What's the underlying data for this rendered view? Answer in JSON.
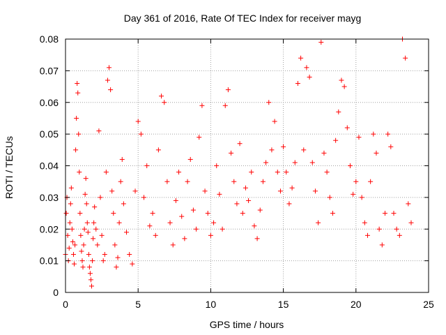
{
  "chart_data": {
    "type": "scatter",
    "title": "Day 361 of 2016, Rate Of TEC Index for receiver mayg",
    "xlabel": "GPS time / hours",
    "ylabel": "ROTI / TECUs",
    "xlim": [
      0,
      25
    ],
    "ylim": [
      0,
      0.08
    ],
    "xticks": [
      0,
      5,
      10,
      15,
      20,
      25
    ],
    "yticks": [
      0,
      0.01,
      0.02,
      0.03,
      0.04,
      0.05,
      0.06,
      0.07,
      0.08
    ],
    "xtick_labels": [
      "0",
      "5",
      "10",
      "15",
      "20",
      "25"
    ],
    "ytick_labels": [
      "0",
      "0.01",
      "0.02",
      "0.03",
      "0.04",
      "0.05",
      "0.06",
      "0.07",
      "0.08"
    ],
    "grid": true,
    "marker": "+",
    "color": "#ff0000",
    "series": [
      {
        "name": "ROTI",
        "x": [
          0.0,
          0.05,
          0.1,
          0.15,
          0.2,
          0.25,
          0.3,
          0.35,
          0.4,
          0.45,
          0.5,
          0.55,
          0.6,
          0.65,
          0.7,
          0.75,
          0.8,
          0.85,
          0.9,
          0.95,
          1.0,
          1.05,
          1.1,
          1.15,
          1.2,
          1.25,
          1.3,
          1.35,
          1.4,
          1.45,
          1.5,
          1.55,
          1.6,
          1.65,
          1.7,
          1.75,
          1.8,
          1.85,
          1.9,
          1.95,
          2.0,
          2.1,
          2.2,
          2.3,
          2.4,
          2.5,
          2.6,
          2.7,
          2.8,
          2.9,
          3.0,
          3.1,
          3.2,
          3.3,
          3.4,
          3.5,
          3.6,
          3.7,
          3.8,
          3.9,
          4.0,
          4.2,
          4.4,
          4.6,
          4.8,
          5.0,
          5.2,
          5.4,
          5.6,
          5.8,
          6.0,
          6.2,
          6.4,
          6.6,
          6.8,
          7.0,
          7.2,
          7.4,
          7.6,
          7.8,
          8.0,
          8.2,
          8.4,
          8.6,
          8.8,
          9.0,
          9.2,
          9.4,
          9.6,
          9.8,
          10.0,
          10.2,
          10.4,
          10.6,
          10.8,
          11.0,
          11.2,
          11.4,
          11.6,
          11.8,
          12.0,
          12.2,
          12.4,
          12.6,
          12.8,
          13.0,
          13.2,
          13.4,
          13.6,
          13.8,
          14.0,
          14.2,
          14.4,
          14.6,
          14.8,
          15.0,
          15.2,
          15.4,
          15.6,
          15.8,
          16.0,
          16.2,
          16.4,
          16.6,
          16.8,
          17.0,
          17.2,
          17.4,
          17.6,
          17.8,
          18.0,
          18.2,
          18.4,
          18.6,
          18.8,
          19.0,
          19.2,
          19.4,
          19.6,
          19.8,
          20.0,
          20.2,
          20.4,
          20.6,
          20.8,
          21.0,
          21.2,
          21.4,
          21.6,
          21.8,
          22.0,
          22.2,
          22.4,
          22.6,
          22.8,
          23.0,
          23.2,
          23.4,
          23.6,
          23.8
        ],
        "y": [
          0.012,
          0.025,
          0.03,
          0.018,
          0.01,
          0.014,
          0.022,
          0.028,
          0.033,
          0.02,
          0.016,
          0.012,
          0.009,
          0.015,
          0.045,
          0.055,
          0.066,
          0.063,
          0.05,
          0.038,
          0.025,
          0.018,
          0.013,
          0.01,
          0.008,
          0.015,
          0.02,
          0.031,
          0.036,
          0.028,
          0.022,
          0.019,
          0.012,
          0.008,
          0.006,
          0.004,
          0.002,
          0.01,
          0.017,
          0.022,
          0.027,
          0.02,
          0.015,
          0.051,
          0.03,
          0.018,
          0.01,
          0.012,
          0.038,
          0.067,
          0.071,
          0.064,
          0.032,
          0.025,
          0.015,
          0.008,
          0.011,
          0.022,
          0.035,
          0.042,
          0.028,
          0.019,
          0.012,
          0.009,
          0.032,
          0.054,
          0.05,
          0.03,
          0.04,
          0.021,
          0.025,
          0.018,
          0.045,
          0.062,
          0.06,
          0.035,
          0.022,
          0.015,
          0.029,
          0.038,
          0.024,
          0.017,
          0.035,
          0.042,
          0.026,
          0.02,
          0.049,
          0.059,
          0.032,
          0.025,
          0.018,
          0.022,
          0.04,
          0.031,
          0.02,
          0.059,
          0.064,
          0.044,
          0.035,
          0.028,
          0.047,
          0.025,
          0.033,
          0.029,
          0.038,
          0.021,
          0.017,
          0.026,
          0.035,
          0.041,
          0.06,
          0.045,
          0.054,
          0.038,
          0.032,
          0.046,
          0.038,
          0.028,
          0.033,
          0.041,
          0.066,
          0.074,
          0.045,
          0.071,
          0.068,
          0.041,
          0.032,
          0.022,
          0.079,
          0.044,
          0.038,
          0.03,
          0.025,
          0.048,
          0.057,
          0.067,
          0.065,
          0.052,
          0.04,
          0.031,
          0.035,
          0.049,
          0.03,
          0.022,
          0.018,
          0.035,
          0.05,
          0.044,
          0.02,
          0.015,
          0.025,
          0.05,
          0.046,
          0.025,
          0.02,
          0.018,
          0.08,
          0.074,
          0.028,
          0.022
        ]
      }
    ]
  }
}
